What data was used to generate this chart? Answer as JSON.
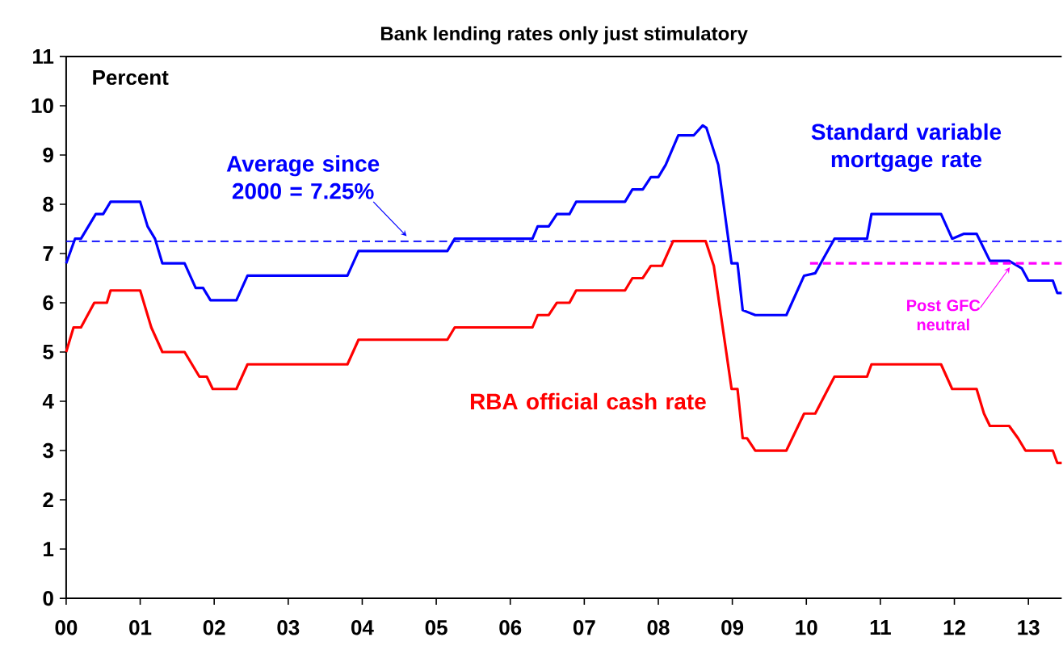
{
  "chart_data": {
    "type": "line",
    "title": "Bank lending rates only just stimulatory",
    "annotations": [
      "Percent"
    ],
    "xlim": [
      2000,
      2013.45
    ],
    "xticks": [
      {
        "value": 2000,
        "label": "00"
      },
      {
        "value": 2001,
        "label": "01"
      },
      {
        "value": 2002,
        "label": "02"
      },
      {
        "value": 2003,
        "label": "03"
      },
      {
        "value": 2004,
        "label": "04"
      },
      {
        "value": 2005,
        "label": "05"
      },
      {
        "value": 2006,
        "label": "06"
      },
      {
        "value": 2007,
        "label": "07"
      },
      {
        "value": 2008,
        "label": "08"
      },
      {
        "value": 2009,
        "label": "09"
      },
      {
        "value": 2010,
        "label": "10"
      },
      {
        "value": 2011,
        "label": "11"
      },
      {
        "value": 2012,
        "label": "12"
      },
      {
        "value": 2013,
        "label": "13"
      }
    ],
    "ylim": [
      0,
      11
    ],
    "yticks": [
      0,
      1,
      2,
      3,
      4,
      5,
      6,
      7,
      8,
      9,
      10,
      11
    ],
    "series": [
      {
        "name": "Standard variable mortgage rate",
        "color": "#0000ff",
        "x": [
          2000.0,
          2000.12,
          2000.2,
          2000.4,
          2000.5,
          2000.6,
          2001.0,
          2001.1,
          2001.2,
          2001.3,
          2001.6,
          2001.75,
          2001.85,
          2001.95,
          2002.3,
          2002.45,
          2003.8,
          2003.95,
          2005.15,
          2005.25,
          2006.3,
          2006.37,
          2006.52,
          2006.63,
          2006.8,
          2006.89,
          2007.55,
          2007.65,
          2007.79,
          2007.9,
          2008.0,
          2008.1,
          2008.27,
          2008.48,
          2008.6,
          2008.65,
          2008.81,
          2008.99,
          2009.07,
          2009.14,
          2009.31,
          2009.73,
          2009.97,
          2010.12,
          2010.38,
          2010.82,
          2010.88,
          2011.82,
          2011.97,
          2012.13,
          2012.3,
          2012.48,
          2012.74,
          2012.91,
          2013.0,
          2013.33,
          2013.39,
          2013.45
        ],
        "values": [
          6.8,
          7.3,
          7.3,
          7.8,
          7.8,
          8.05,
          8.05,
          7.55,
          7.3,
          6.8,
          6.8,
          6.3,
          6.3,
          6.05,
          6.05,
          6.55,
          6.55,
          7.05,
          7.05,
          7.3,
          7.3,
          7.55,
          7.55,
          7.8,
          7.8,
          8.05,
          8.05,
          8.3,
          8.3,
          8.55,
          8.55,
          8.8,
          9.4,
          9.4,
          9.6,
          9.55,
          8.8,
          6.8,
          6.8,
          5.85,
          5.75,
          5.75,
          6.55,
          6.6,
          7.3,
          7.3,
          7.8,
          7.8,
          7.3,
          7.4,
          7.4,
          6.85,
          6.85,
          6.7,
          6.45,
          6.45,
          6.2,
          6.2
        ]
      },
      {
        "name": "RBA official cash rate",
        "color": "#ff0000",
        "x": [
          2000.0,
          2000.1,
          2000.2,
          2000.38,
          2000.55,
          2000.6,
          2001.0,
          2001.15,
          2001.3,
          2001.6,
          2001.8,
          2001.9,
          2001.98,
          2002.3,
          2002.45,
          2003.8,
          2003.95,
          2005.15,
          2005.25,
          2006.3,
          2006.37,
          2006.52,
          2006.63,
          2006.8,
          2006.89,
          2007.55,
          2007.65,
          2007.79,
          2007.9,
          2008.05,
          2008.2,
          2008.64,
          2008.75,
          2008.99,
          2009.07,
          2009.14,
          2009.2,
          2009.31,
          2009.73,
          2009.97,
          2010.12,
          2010.38,
          2010.82,
          2010.88,
          2011.82,
          2011.97,
          2012.3,
          2012.4,
          2012.48,
          2012.74,
          2012.86,
          2012.96,
          2013.33,
          2013.39,
          2013.45
        ],
        "values": [
          5.0,
          5.5,
          5.5,
          6.0,
          6.0,
          6.25,
          6.25,
          5.5,
          5.0,
          5.0,
          4.5,
          4.5,
          4.25,
          4.25,
          4.75,
          4.75,
          5.25,
          5.25,
          5.5,
          5.5,
          5.75,
          5.75,
          6.0,
          6.0,
          6.25,
          6.25,
          6.5,
          6.5,
          6.75,
          6.75,
          7.25,
          7.25,
          6.75,
          4.25,
          4.25,
          3.25,
          3.25,
          3.0,
          3.0,
          3.75,
          3.75,
          4.5,
          4.5,
          4.75,
          4.75,
          4.25,
          4.25,
          3.75,
          3.5,
          3.5,
          3.25,
          3.0,
          3.0,
          2.75,
          2.75
        ]
      },
      {
        "name": "Post GFC neutral",
        "color": "#ff00ff",
        "line_style": "dashed",
        "x": [
          2010.05,
          2013.45
        ],
        "values": [
          6.8,
          6.8
        ]
      }
    ],
    "ref_lines": [
      {
        "axis": "y",
        "value": 7.25,
        "label": "Average since 2000 = 7.25%",
        "color": "#0000ff",
        "line_style": "dashed"
      }
    ]
  }
}
